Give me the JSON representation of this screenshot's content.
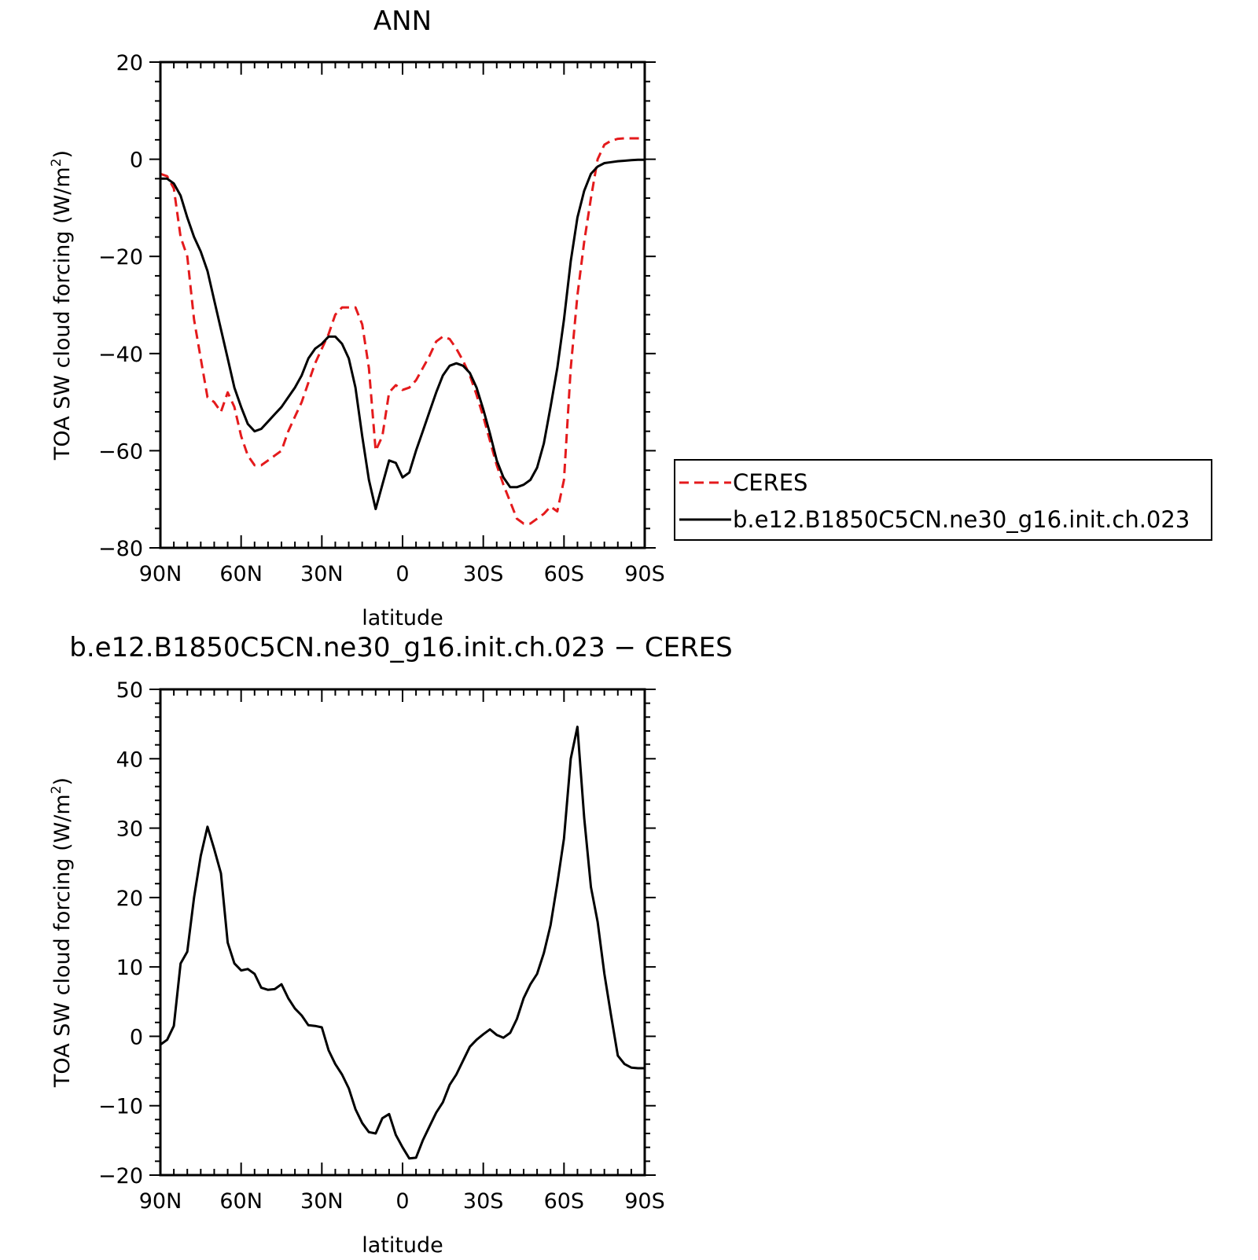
{
  "chart_data": [
    {
      "type": "line",
      "title": "ANN",
      "xlabel": "latitude",
      "ylabel": "TOA SW cloud forcing (W/m",
      "ylabel_sup": "2",
      "ylabel_suffix": ")",
      "xlim": [
        90,
        -90
      ],
      "ylim": [
        -80,
        20
      ],
      "xticks": [
        90,
        60,
        30,
        0,
        -30,
        -60,
        -90
      ],
      "xtick_labels": [
        "90N",
        "60N",
        "30N",
        "0",
        "30S",
        "60S",
        "90S"
      ],
      "yticks": [
        -80,
        -60,
        -40,
        -20,
        0,
        20
      ],
      "ytick_labels": [
        "−80",
        "−60",
        "−40",
        "−20",
        "0",
        "20"
      ],
      "grid": false,
      "legend_position": "right",
      "series": [
        {
          "name": "CERES",
          "color": "#e41a1c",
          "dash": "dashed",
          "x": [
            90,
            87.5,
            85,
            82.5,
            80,
            77.5,
            75,
            72.5,
            70,
            67.5,
            65,
            62.5,
            60,
            57.5,
            55,
            52.5,
            50,
            47.5,
            45,
            42.5,
            40,
            37.5,
            35,
            32.5,
            30,
            27.5,
            25,
            22.5,
            20,
            17.5,
            15,
            12.5,
            10,
            7.5,
            5,
            2.5,
            0,
            -2.5,
            -5,
            -7.5,
            -10,
            -12.5,
            -15,
            -17.5,
            -20,
            -22.5,
            -25,
            -27.5,
            -30,
            -32.5,
            -35,
            -37.5,
            -40,
            -42.5,
            -45,
            -47.5,
            -50,
            -52.5,
            -55,
            -57.5,
            -60,
            -62.5,
            -65,
            -67.5,
            -70,
            -72.5,
            -75,
            -77.5,
            -80,
            -82.5,
            -85,
            -87.5,
            -90
          ],
          "y": [
            -3,
            -3.5,
            -6,
            -16,
            -20,
            -33,
            -41,
            -49,
            -50,
            -52,
            -48,
            -51,
            -57,
            -61,
            -63,
            -63,
            -62,
            -61,
            -60,
            -56,
            -53,
            -50,
            -46,
            -42,
            -39,
            -36,
            -32,
            -30.5,
            -30.5,
            -30.5,
            -34,
            -43,
            -60,
            -57,
            -48,
            -46.5,
            -47.5,
            -47,
            -45.5,
            -43,
            -40.5,
            -37.5,
            -36.5,
            -37,
            -39,
            -41.5,
            -44.5,
            -48.5,
            -53,
            -58,
            -63,
            -67,
            -70.5,
            -74,
            -75,
            -75,
            -74,
            -73,
            -71.5,
            -72.5,
            -66,
            -43,
            -28,
            -17,
            -8,
            0,
            3,
            3.8,
            4.2,
            4.3,
            4.3,
            4.3,
            4.3
          ],
          "y_override": null
        },
        {
          "name": "b.e12.B1850C5CN.ne30_g16.init.ch.023",
          "color": "#000000",
          "dash": "solid",
          "x": [
            90,
            87.5,
            85,
            82.5,
            80,
            77.5,
            75,
            72.5,
            70,
            67.5,
            65,
            62.5,
            60,
            57.5,
            55,
            52.5,
            50,
            47.5,
            45,
            42.5,
            40,
            37.5,
            35,
            32.5,
            30,
            27.5,
            25,
            22.5,
            20,
            17.5,
            15,
            12.5,
            10,
            7.5,
            5,
            2.5,
            0,
            -2.5,
            -5,
            -7.5,
            -10,
            -12.5,
            -15,
            -17.5,
            -20,
            -22.5,
            -25,
            -27.5,
            -30,
            -32.5,
            -35,
            -37.5,
            -40,
            -42.5,
            -45,
            -47.5,
            -50,
            -52.5,
            -55,
            -57.5,
            -60,
            -62.5,
            -65,
            -67.5,
            -70,
            -72.5,
            -75,
            -77.5,
            -80,
            -82.5,
            -85,
            -87.5,
            -90
          ],
          "y": [
            -4,
            -4,
            -5,
            -7.5,
            -12,
            -16,
            -19,
            -23,
            -29,
            -35,
            -41,
            -47,
            -51,
            -54.5,
            -56,
            -55.5,
            -54,
            -52.5,
            -51,
            -49,
            -47,
            -44.5,
            -41,
            -39,
            -38,
            -36.5,
            -36.5,
            -38,
            -41,
            -47,
            -57,
            -66,
            -72,
            -67,
            -62,
            -62.5,
            -65.5,
            -64.5,
            -60,
            -56,
            -52,
            -48,
            -44.5,
            -42.5,
            -42,
            -42.5,
            -44,
            -47,
            -51.5,
            -56.5,
            -62,
            -65.5,
            -67.5,
            -67.5,
            -67,
            -66,
            -63.5,
            -58.5,
            -51,
            -43,
            -33,
            -21,
            -12,
            -6.5,
            -3,
            -1.5,
            -0.8,
            -0.6,
            -0.4,
            -0.3,
            -0.2,
            -0.1,
            -0.1
          ],
          "y_override": null
        }
      ]
    },
    {
      "type": "line",
      "title": "b.e12.B1850C5CN.ne30_g16.init.ch.023 − CERES",
      "xlabel": "latitude",
      "ylabel": "TOA SW cloud forcing (W/m",
      "ylabel_sup": "2",
      "ylabel_suffix": ")",
      "xlim": [
        90,
        -90
      ],
      "ylim": [
        -20,
        50
      ],
      "xticks": [
        90,
        60,
        30,
        0,
        -30,
        -60,
        -90
      ],
      "xtick_labels": [
        "90N",
        "60N",
        "30N",
        "0",
        "30S",
        "60S",
        "90S"
      ],
      "yticks": [
        -20,
        -10,
        0,
        10,
        20,
        30,
        40,
        50
      ],
      "ytick_labels": [
        "−20",
        "−10",
        "0",
        "10",
        "20",
        "30",
        "40",
        "50"
      ],
      "grid": false,
      "series": [
        {
          "color": "#000000",
          "dash": "solid",
          "x": [
            90,
            87.5,
            85,
            82.5,
            80,
            77.5,
            75,
            72.5,
            70,
            67.5,
            65,
            62.5,
            60,
            57.5,
            55,
            52.5,
            50,
            47.5,
            45,
            42.5,
            40,
            37.5,
            35,
            32.5,
            30,
            27.5,
            25,
            22.5,
            20,
            17.5,
            15,
            12.5,
            10,
            7.5,
            5,
            2.5,
            0,
            -2.5,
            -5,
            -7.5,
            -10,
            -12.5,
            -15,
            -17.5,
            -20,
            -22.5,
            -25,
            -27.5,
            -30,
            -32.5,
            -35,
            -37.5,
            -40,
            -42.5,
            -45,
            -47.5,
            -50,
            -52.5,
            -55,
            -57.5,
            -60,
            -62.5,
            -65,
            -67.5,
            -70,
            -72.5,
            -75,
            -77.5,
            -80,
            -82.5,
            -85,
            -87.5,
            -90
          ],
          "y": [
            -1.2,
            -0.5,
            1.5,
            10.5,
            12.2,
            20,
            26,
            30.2,
            27,
            23.5,
            13.5,
            10.5,
            9.5,
            9.7,
            9,
            7,
            6.7,
            6.8,
            7.5,
            5.5,
            4,
            3,
            1.6,
            1.5,
            1.3,
            -2,
            -4,
            -5.5,
            -7.5,
            -10.5,
            -12.5,
            -13.8,
            -14,
            -11.8,
            -11.2,
            -14.2,
            -16,
            -17.6,
            -17.5,
            -15,
            -13,
            -11,
            -9.5,
            -7,
            -5.5,
            -3.5,
            -1.5,
            -0.5,
            0.3,
            1,
            0.2,
            -0.2,
            0.5,
            2.5,
            5.5,
            7.5,
            9,
            12,
            16,
            22,
            28.5,
            40,
            44.6,
            31.5,
            21.5,
            16.5,
            9,
            3,
            -2.8,
            -4,
            -4.5,
            -4.6,
            -4.6
          ]
        }
      ]
    }
  ]
}
